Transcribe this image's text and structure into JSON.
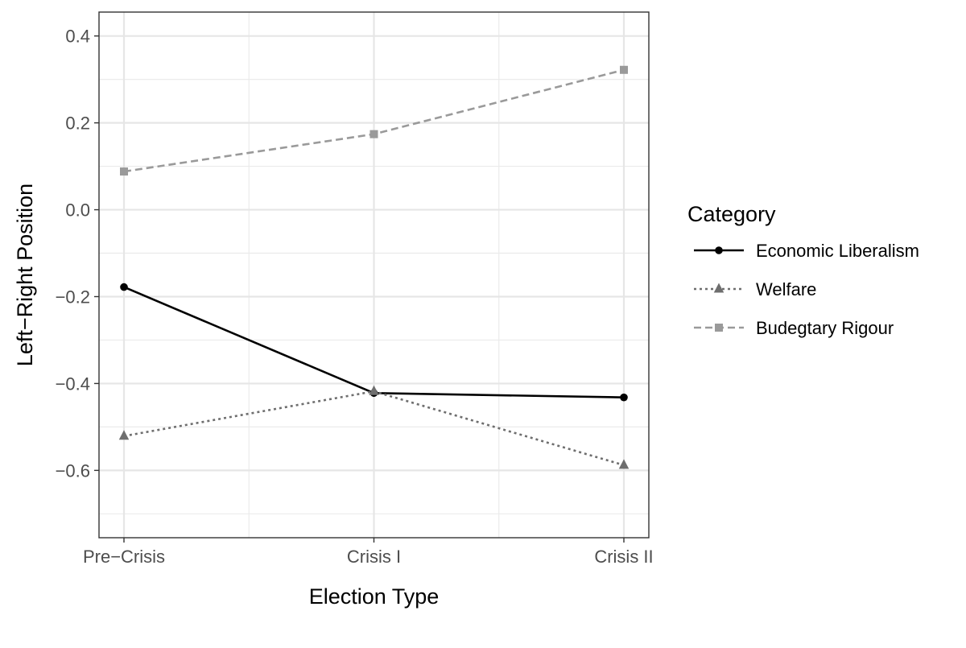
{
  "chart_data": {
    "type": "line",
    "xlabel": "Election Type",
    "ylabel": "Left−Right Position",
    "categories": [
      "Pre−Crisis",
      "Crisis I",
      "Crisis II"
    ],
    "ylim": [
      -0.755,
      0.455
    ],
    "yticks": [
      0.4,
      0.2,
      0.0,
      -0.2,
      -0.4,
      -0.6
    ],
    "ytick_labels": [
      "0.4",
      "0.2",
      "0.0",
      "−0.2",
      "−0.4",
      "−0.6"
    ],
    "grid": true,
    "legend_title": "Category",
    "legend_position": "right",
    "series": [
      {
        "name": "Economic Liberalism",
        "values": [
          -0.178,
          -0.422,
          -0.432
        ],
        "color": "#000000",
        "line": "solid",
        "marker": "circle"
      },
      {
        "name": "Welfare",
        "values": [
          -0.521,
          -0.418,
          -0.588
        ],
        "color": "#6e6e6e",
        "line": "dotted",
        "marker": "triangle"
      },
      {
        "name": "Budegtary Rigour",
        "values": [
          0.088,
          0.174,
          0.322
        ],
        "color": "#9a9a9a",
        "line": "dashed",
        "marker": "square"
      }
    ]
  }
}
